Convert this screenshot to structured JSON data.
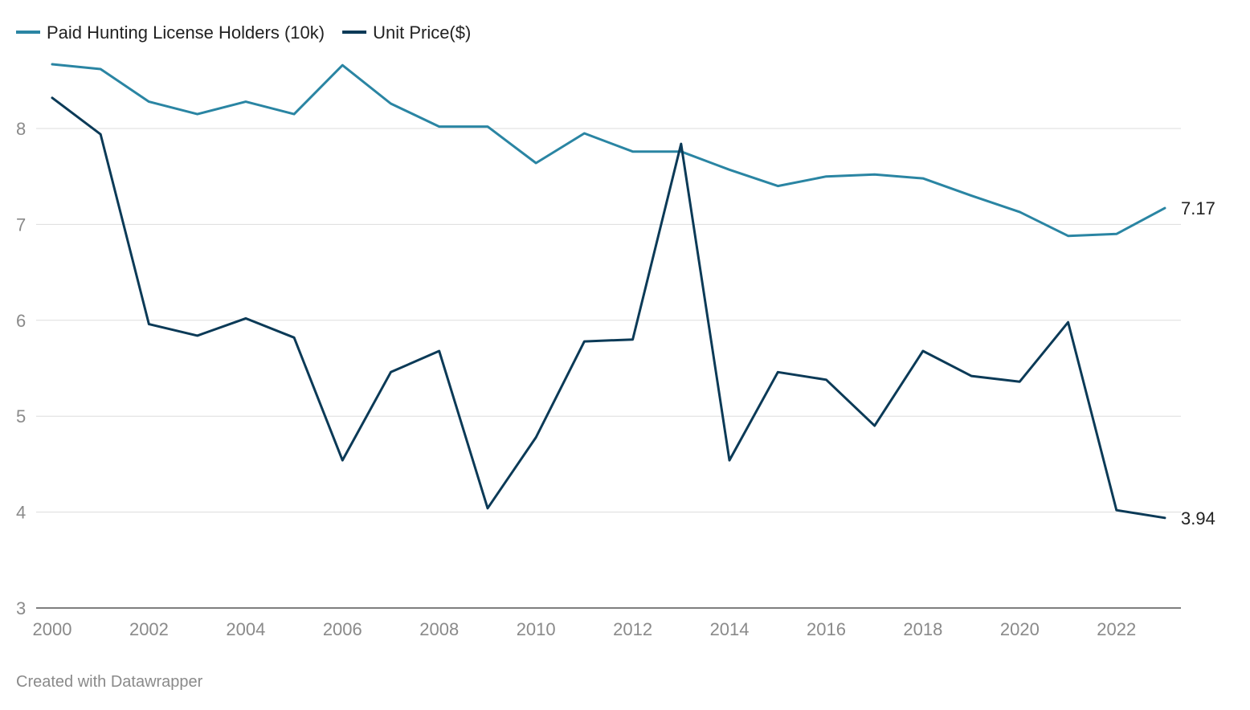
{
  "chart_data": {
    "type": "line",
    "x": [
      2000,
      2001,
      2002,
      2003,
      2004,
      2005,
      2006,
      2007,
      2008,
      2009,
      2010,
      2011,
      2012,
      2013,
      2014,
      2015,
      2016,
      2017,
      2018,
      2019,
      2020,
      2021,
      2022,
      2023
    ],
    "series": [
      {
        "name": "Paid Hunting License Holders (10k)",
        "color": "#2a85a3",
        "values": [
          8.67,
          8.62,
          8.28,
          8.15,
          8.28,
          8.15,
          8.66,
          8.26,
          8.02,
          8.02,
          7.64,
          7.95,
          7.76,
          7.76,
          7.57,
          7.4,
          7.5,
          7.52,
          7.48,
          7.3,
          7.13,
          6.88,
          6.9,
          7.17
        ]
      },
      {
        "name": "Unit Price($)",
        "color": "#0b3a57",
        "values": [
          8.32,
          7.94,
          5.96,
          5.84,
          6.02,
          5.82,
          4.54,
          5.46,
          5.68,
          4.04,
          4.78,
          5.78,
          5.8,
          7.84,
          4.54,
          5.46,
          5.38,
          4.9,
          5.68,
          5.42,
          5.36,
          5.98,
          4.02,
          3.94
        ]
      }
    ],
    "y_ticks": [
      "3",
      "4",
      "5",
      "6",
      "7",
      "8"
    ],
    "x_ticks": [
      "2000",
      "2002",
      "2004",
      "2006",
      "2008",
      "2010",
      "2012",
      "2014",
      "2016",
      "2018",
      "2020",
      "2022"
    ],
    "ylim": [
      3,
      8.9
    ],
    "xlim": [
      2000,
      2023
    ],
    "grid": true,
    "legend_position": "top-left",
    "end_labels": [
      "7.17",
      "3.94"
    ],
    "title": "",
    "xlabel": "",
    "ylabel": ""
  },
  "credit": "Created with Datawrapper"
}
